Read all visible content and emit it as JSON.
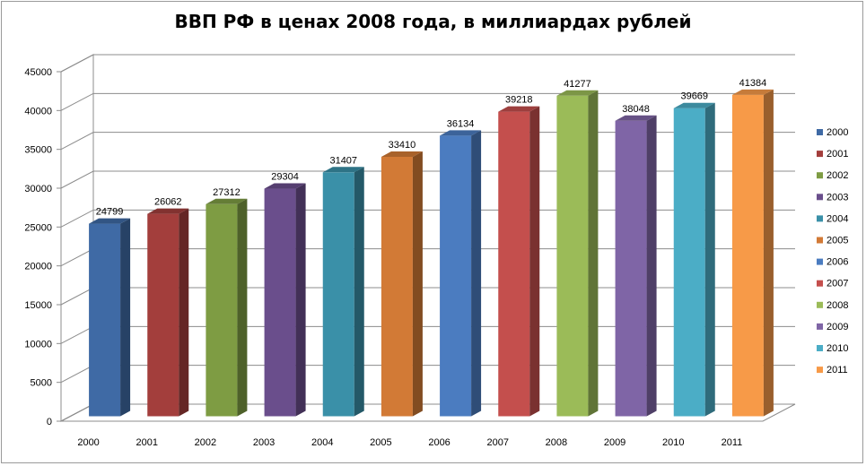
{
  "chart_data": {
    "type": "bar",
    "title": "ВВП РФ в ценах 2008 года, в миллиардах рублей",
    "categories": [
      "2000",
      "2001",
      "2002",
      "2003",
      "2004",
      "2005",
      "2006",
      "2007",
      "2008",
      "2009",
      "2010",
      "2011"
    ],
    "values": [
      24799,
      26062,
      27312,
      29304,
      31407,
      33410,
      36134,
      39218,
      41277,
      38048,
      39669,
      41384
    ],
    "data_labels": [
      "24799",
      "26062",
      "27312",
      "29304",
      "31407",
      "33410",
      "36134",
      "39218",
      "41277",
      "38048",
      "39669",
      "41384"
    ],
    "ylim": [
      0,
      45000
    ],
    "yticks": [
      0,
      5000,
      10000,
      15000,
      20000,
      25000,
      30000,
      35000,
      40000,
      45000
    ],
    "ytick_labels": [
      "0",
      "5000",
      "10000",
      "15000",
      "20000",
      "25000",
      "30000",
      "35000",
      "40000",
      "45000"
    ],
    "colors": [
      "#3F6AA5",
      "#A33E3C",
      "#7E9C43",
      "#6A4E8C",
      "#3A90A8",
      "#D27A36",
      "#4B7CC0",
      "#C44F4D",
      "#9BBB58",
      "#7F65A6",
      "#4BADC6",
      "#F79A48"
    ],
    "legend": [
      "2000",
      "2001",
      "2002",
      "2003",
      "2004",
      "2005",
      "2006",
      "2007",
      "2008",
      "2009",
      "2010",
      "2011"
    ],
    "legend_position": "right",
    "grid": true,
    "style": "3d-column"
  }
}
